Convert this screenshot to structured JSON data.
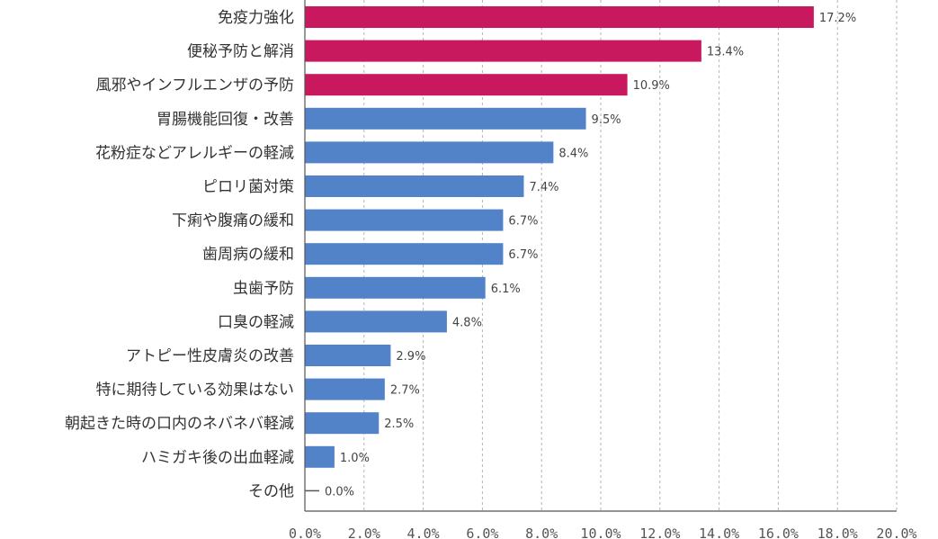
{
  "chart_data": {
    "type": "bar",
    "orientation": "horizontal",
    "title": "",
    "xlabel": "",
    "ylabel": "",
    "xlim": [
      0,
      20
    ],
    "x_ticks": [
      "0.0%",
      "2.0%",
      "4.0%",
      "6.0%",
      "8.0%",
      "10.0%",
      "12.0%",
      "14.0%",
      "16.0%",
      "18.0%",
      "20.0%"
    ],
    "grid": "vertical dashed",
    "legend": "none",
    "categories": [
      "免疫力強化",
      "便秘予防と解消",
      "風邪やインフルエンザの予防",
      "胃腸機能回復・改善",
      "花粉症などアレルギーの軽減",
      "ピロリ菌対策",
      "下痢や腹痛の緩和",
      "歯周病の緩和",
      "虫歯予防",
      "口臭の軽減",
      "アトピー性皮膚炎の改善",
      "特に期待している効果はない",
      "朝起きた時の口内のネバネバ軽減",
      "ハミガキ後の出血軽減",
      "その他"
    ],
    "values": [
      17.2,
      13.4,
      10.9,
      9.5,
      8.4,
      7.4,
      6.7,
      6.7,
      6.1,
      4.8,
      2.9,
      2.7,
      2.5,
      1.0,
      0.0
    ],
    "value_labels": [
      "17.2%",
      "13.4%",
      "10.9%",
      "9.5%",
      "8.4%",
      "7.4%",
      "6.7%",
      "6.7%",
      "6.1%",
      "4.8%",
      "2.9%",
      "2.7%",
      "2.5%",
      "1.0%",
      "0.0%"
    ],
    "colors": [
      "#c8185e",
      "#c8185e",
      "#c8185e",
      "#5283c8",
      "#5283c8",
      "#5283c8",
      "#5283c8",
      "#5283c8",
      "#5283c8",
      "#5283c8",
      "#5283c8",
      "#5283c8",
      "#5283c8",
      "#5283c8",
      "#5283c8"
    ]
  }
}
